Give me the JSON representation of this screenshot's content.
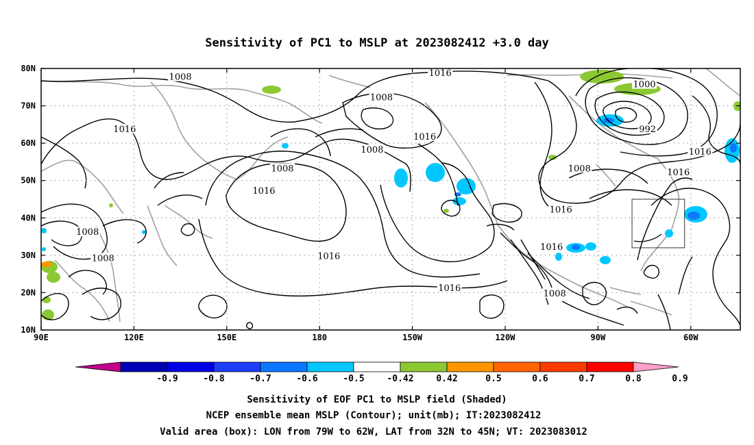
{
  "chart_data": {
    "type": "contour-map",
    "title": "Sensitivity of PC1 to MSLP at 2023082412 +3.0 day",
    "lon_ticks": [
      "90E",
      "120E",
      "150E",
      "180",
      "150W",
      "120W",
      "90W",
      "60W"
    ],
    "lon_values": [
      90,
      120,
      150,
      180,
      210,
      240,
      270,
      300
    ],
    "lat_ticks": [
      "80N",
      "70N",
      "60N",
      "50N",
      "40N",
      "30N",
      "20N",
      "10N"
    ],
    "lat_values": [
      80,
      70,
      60,
      50,
      40,
      30,
      20,
      10
    ],
    "lon_range": [
      90,
      316
    ],
    "lat_range": [
      10,
      80
    ],
    "grid": true,
    "contour_labels": [
      {
        "text": "1008",
        "lon": 135,
        "lat": 77.5
      },
      {
        "text": "1016",
        "lon": 219,
        "lat": 78.5
      },
      {
        "text": "1008",
        "lon": 200,
        "lat": 72
      },
      {
        "text": "1000",
        "lon": 285,
        "lat": 75.5
      },
      {
        "text": "992",
        "lon": 286,
        "lat": 63.5
      },
      {
        "text": "1016",
        "lon": 117,
        "lat": 63.5
      },
      {
        "text": "1016",
        "lon": 214,
        "lat": 61.5
      },
      {
        "text": "1008",
        "lon": 197,
        "lat": 58
      },
      {
        "text": "1016",
        "lon": 303,
        "lat": 57.5
      },
      {
        "text": "1008",
        "lon": 168,
        "lat": 53
      },
      {
        "text": "1008",
        "lon": 264,
        "lat": 53
      },
      {
        "text": "1016",
        "lon": 296,
        "lat": 52
      },
      {
        "text": "1016",
        "lon": 162,
        "lat": 47
      },
      {
        "text": "1016",
        "lon": 258,
        "lat": 42
      },
      {
        "text": "1008",
        "lon": 105,
        "lat": 36
      },
      {
        "text": "1016",
        "lon": 255,
        "lat": 32
      },
      {
        "text": "1008",
        "lon": 110,
        "lat": 29
      },
      {
        "text": "1016",
        "lon": 183,
        "lat": 29.5
      },
      {
        "text": "1016",
        "lon": 222,
        "lat": 21
      },
      {
        "text": "1008",
        "lon": 256,
        "lat": 19.5
      }
    ],
    "valid_box": {
      "lon": [
        281,
        298
      ],
      "lat": [
        32,
        45
      ]
    },
    "colorbar": {
      "labels": [
        "-0.9",
        "-0.8",
        "-0.7",
        "-0.6",
        "-0.5",
        "-0.42",
        "0.42",
        "0.5",
        "0.6",
        "0.7",
        "0.8",
        "0.9"
      ],
      "colors": [
        "#c0008c",
        "#0000b4",
        "#0000e6",
        "#1e3cff",
        "#0a78ff",
        "#00c8ff",
        "#ffffff",
        "#8cc832",
        "#ff9600",
        "#ff6400",
        "#ff3c00",
        "#ff0000",
        "#ffa0c8"
      ]
    },
    "shaded_legend": {
      "negative": "#00c8ff",
      "positive": "#8cc832"
    }
  },
  "captions": {
    "line1": "Sensitivity of EOF PC1 to MSLP field (Shaded)",
    "line2": "NCEP ensemble mean MSLP (Contour); unit(mb); IT:2023082412",
    "line3": "Valid area (box): LON from 79W to 62W, LAT from 32N to 45N; VT: 2023083012"
  }
}
